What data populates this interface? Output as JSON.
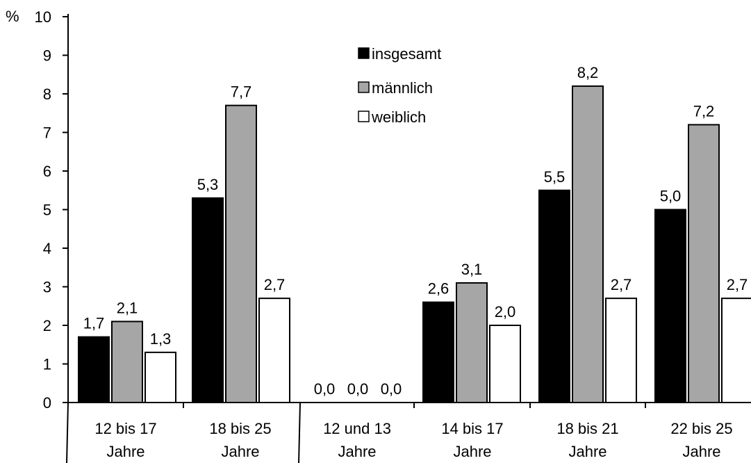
{
  "chart_data": {
    "type": "bar",
    "ylabel": "%",
    "ylim": [
      0,
      10
    ],
    "yticks": [
      "0",
      "1",
      "2",
      "3",
      "4",
      "5",
      "6",
      "7",
      "8",
      "9",
      "10"
    ],
    "grid": false,
    "legend_position": "top-center",
    "categories": [
      [
        "12 bis 17",
        "Jahre"
      ],
      [
        "18 bis 25",
        "Jahre"
      ],
      [
        "12 und 13",
        "Jahre"
      ],
      [
        "14 bis 17",
        "Jahre"
      ],
      [
        "18 bis 21",
        "Jahre"
      ],
      [
        "22 bis 25",
        "Jahre"
      ]
    ],
    "series": [
      {
        "name": "insgesamt",
        "color": "#000000",
        "values": [
          1.7,
          5.3,
          0.0,
          2.6,
          5.5,
          5.0
        ],
        "labels": [
          "1,7",
          "5,3",
          "0,0",
          "2,6",
          "5,5",
          "5,0"
        ]
      },
      {
        "name": "männlich",
        "color": "#a6a6a6",
        "values": [
          2.1,
          7.7,
          0.0,
          3.1,
          8.2,
          7.2
        ],
        "labels": [
          "2,1",
          "7,7",
          "0,0",
          "3,1",
          "8,2",
          "7,2"
        ]
      },
      {
        "name": "weiblich",
        "color": "#ffffff",
        "values": [
          1.3,
          2.7,
          0.0,
          2.0,
          2.7,
          2.7
        ],
        "labels": [
          "1,3",
          "2,7",
          "0,0",
          "2,0",
          "2,7",
          "2,7"
        ]
      }
    ]
  }
}
